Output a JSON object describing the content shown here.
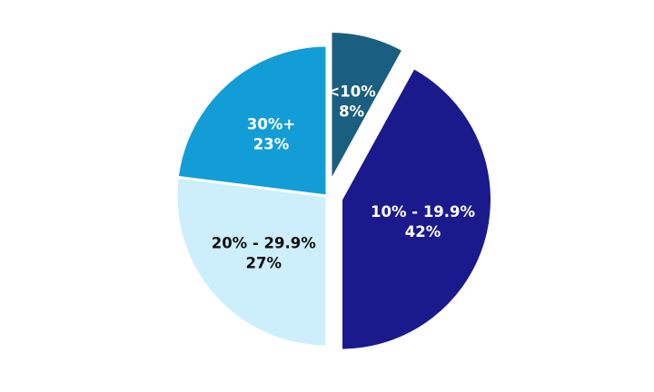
{
  "chart_data": {
    "type": "pie",
    "title": "",
    "start": "top",
    "direction": "clockwise",
    "slices": [
      {
        "label": "<10%",
        "value_label": "8%",
        "value": 8,
        "color": "#1a5e80",
        "text_color": "#ffffff",
        "exploded": true
      },
      {
        "label": "10% - 19.9%",
        "value_label": "42%",
        "value": 42,
        "color": "#1a1a8c",
        "text_color": "#ffffff",
        "exploded": true
      },
      {
        "label": "20% - 29.9%",
        "value_label": "27%",
        "value": 27,
        "color": "#cdeefb",
        "text_color": "#111111",
        "exploded": false
      },
      {
        "label": "30%+",
        "value_label": "23%",
        "value": 23,
        "color": "#139dd6",
        "text_color": "#ffffff",
        "exploded": false
      }
    ]
  }
}
